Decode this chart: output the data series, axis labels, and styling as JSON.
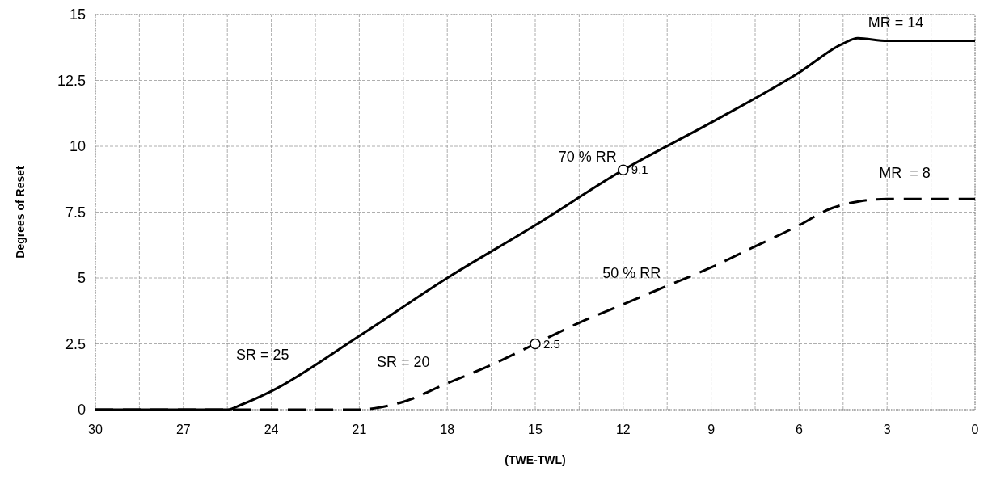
{
  "chart_data": {
    "type": "line",
    "xlabel": "(TWE-TWL)",
    "ylabel": "Degrees of Reset",
    "xlim": [
      30,
      0
    ],
    "ylim": [
      0,
      15
    ],
    "xticks": [
      30,
      {
        "value": 28.5,
        "label": null
      },
      27,
      {
        "value": 25.5,
        "label": null
      },
      24,
      {
        "value": 22.5,
        "label": null
      },
      21,
      {
        "value": 19.5,
        "label": null
      },
      18,
      {
        "value": 16.5,
        "label": null
      },
      15,
      {
        "value": 13.5,
        "label": null
      },
      12,
      {
        "value": 10.5,
        "label": null
      },
      9,
      {
        "value": 7.5,
        "label": null
      },
      6,
      {
        "value": 4.5,
        "label": null
      },
      3,
      {
        "value": 1.5,
        "label": null
      },
      0
    ],
    "yticks": [
      0,
      2.5,
      5,
      7.5,
      10,
      12.5,
      15
    ],
    "grid": true,
    "series": [
      {
        "name": "70 % RR",
        "color": "#000000",
        "line_style": "solid",
        "x": [
          30,
          26,
          25.5,
          25,
          24,
          21,
          18,
          15,
          12,
          9,
          6,
          4.5,
          4,
          3,
          0
        ],
        "values": [
          0,
          0,
          0,
          0.2,
          0.7,
          2.8,
          5,
          7,
          9.1,
          10.9,
          12.8,
          13.9,
          14.1,
          14,
          14
        ]
      },
      {
        "name": "50 % RR",
        "color": "#000000",
        "line_style": "dashed",
        "x": [
          30,
          21,
          20.5,
          19.5,
          18,
          16.5,
          15,
          13.5,
          12,
          10.5,
          9,
          7.5,
          6,
          5,
          4,
          3,
          0
        ],
        "values": [
          0,
          0,
          0.05,
          0.3,
          1,
          1.7,
          2.5,
          3.3,
          4,
          4.7,
          5.4,
          6.2,
          7,
          7.6,
          7.9,
          8,
          8
        ]
      },
      {
        "type": "scatter",
        "marker": "circle",
        "color": "#000000",
        "x": [
          12,
          15
        ],
        "values": [
          9.1,
          2.5
        ],
        "value_labels": [
          "9.1",
          "2.5"
        ]
      }
    ],
    "annotations": [
      "SR = 25",
      "SR = 20",
      "MR = 14",
      "MR  = 8"
    ]
  }
}
